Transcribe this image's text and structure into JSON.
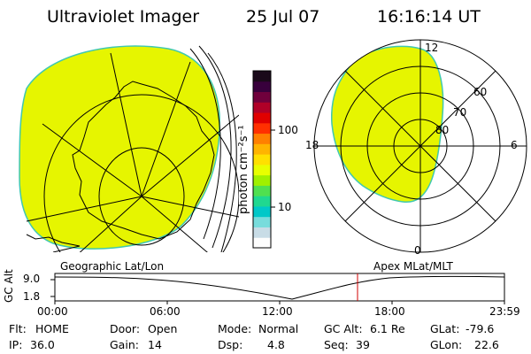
{
  "header": {
    "instrument": "Ultraviolet Imager",
    "date": "25 Jul 07",
    "time": "16:16:14 UT"
  },
  "colorbar": {
    "unit_label": "photon cm⁻²s⁻¹",
    "ticks": [
      "100",
      "10"
    ],
    "colors": [
      "#fdfdfd",
      "#c8dce6",
      "#78dcdc",
      "#00c8c8",
      "#20d890",
      "#50e050",
      "#a0f000",
      "#e8ff00",
      "#ffe000",
      "#ffb400",
      "#ff8000",
      "#ff3000",
      "#e00000",
      "#b00028",
      "#70003c",
      "#38003c",
      "#1a0a1a"
    ]
  },
  "geo_map": {
    "label": "Geographic Lat/Lon",
    "fill_color": "#e6f500"
  },
  "polar_map": {
    "label": "Apex MLat/MLT",
    "fill_color": "#e6f500",
    "mlt_labels": [
      "12",
      "6",
      "0",
      "18"
    ],
    "mlat_labels": [
      "60",
      "70",
      "80"
    ]
  },
  "altitude_plot": {
    "ylabel": "GC Alt",
    "yticks": [
      "9.0",
      "1.8"
    ],
    "xticks": [
      "00:00",
      "06:00",
      "12:00",
      "18:00",
      "23:59"
    ],
    "marker_color": "#d00000"
  },
  "info": {
    "col1": [
      {
        "label": "Flt:",
        "value": "HOME"
      },
      {
        "label": "IP:",
        "value": "36.0"
      }
    ],
    "col2": [
      {
        "label": "Door:",
        "value": "Open"
      },
      {
        "label": "Gain:",
        "value": "14"
      }
    ],
    "col3": [
      {
        "label": "Mode:",
        "value": "Normal"
      },
      {
        "label": "Dsp:",
        "value": "4.8"
      }
    ],
    "col4": [
      {
        "label": "GC Alt:",
        "value": "6.1 Re"
      },
      {
        "label": "Seq:",
        "value": "39"
      }
    ],
    "col5": [
      {
        "label": "GLat:",
        "value": "-79.6"
      },
      {
        "label": "GLon:",
        "value": "22.6"
      }
    ]
  }
}
